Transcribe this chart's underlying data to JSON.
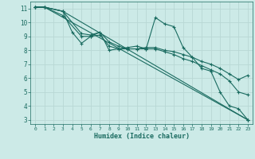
{
  "xlabel": "Humidex (Indice chaleur)",
  "bg_color": "#cceae7",
  "line_color": "#1a6b60",
  "grid_color": "#b8d8d4",
  "xlim": [
    -0.5,
    23.5
  ],
  "ylim": [
    2.7,
    11.5
  ],
  "xticks": [
    0,
    1,
    2,
    3,
    4,
    5,
    6,
    7,
    8,
    9,
    10,
    11,
    12,
    13,
    14,
    15,
    16,
    17,
    18,
    19,
    20,
    21,
    22,
    23
  ],
  "yticks": [
    3,
    4,
    5,
    6,
    7,
    8,
    9,
    10,
    11
  ],
  "series": [
    {
      "x": [
        0,
        1,
        3,
        4,
        5,
        6,
        7,
        8,
        9,
        10,
        11,
        12,
        13,
        14,
        15,
        16,
        17,
        18,
        19,
        20,
        21,
        22,
        23
      ],
      "y": [
        11.1,
        11.1,
        10.8,
        9.3,
        8.5,
        9.0,
        9.3,
        8.0,
        8.1,
        8.2,
        8.3,
        8.1,
        10.35,
        9.9,
        9.7,
        8.2,
        7.5,
        6.7,
        6.5,
        5.0,
        4.0,
        3.8,
        3.0
      ]
    },
    {
      "x": [
        0,
        1,
        23
      ],
      "y": [
        11.1,
        11.1,
        3.0
      ]
    },
    {
      "x": [
        0,
        1,
        3,
        23
      ],
      "y": [
        11.1,
        11.1,
        10.8,
        3.0
      ]
    },
    {
      "x": [
        0,
        1,
        3,
        5,
        6,
        7,
        8,
        9,
        10,
        11,
        12,
        13,
        14,
        15,
        16,
        17,
        18,
        19,
        20,
        21,
        22,
        23
      ],
      "y": [
        11.1,
        11.1,
        10.8,
        9.2,
        9.1,
        9.3,
        8.6,
        8.3,
        8.1,
        8.1,
        8.2,
        8.2,
        8.0,
        7.9,
        7.7,
        7.5,
        7.2,
        7.0,
        6.7,
        6.3,
        5.9,
        6.2
      ]
    },
    {
      "x": [
        0,
        1,
        3,
        5,
        6,
        7,
        8,
        9,
        10,
        11,
        12,
        13,
        14,
        15,
        16,
        17,
        18,
        19,
        20,
        21,
        22,
        23
      ],
      "y": [
        11.1,
        11.1,
        10.5,
        9.0,
        9.0,
        9.1,
        8.3,
        8.1,
        8.1,
        8.1,
        8.1,
        8.1,
        7.9,
        7.7,
        7.4,
        7.2,
        6.9,
        6.6,
        6.3,
        5.8,
        5.0,
        4.8
      ]
    }
  ]
}
